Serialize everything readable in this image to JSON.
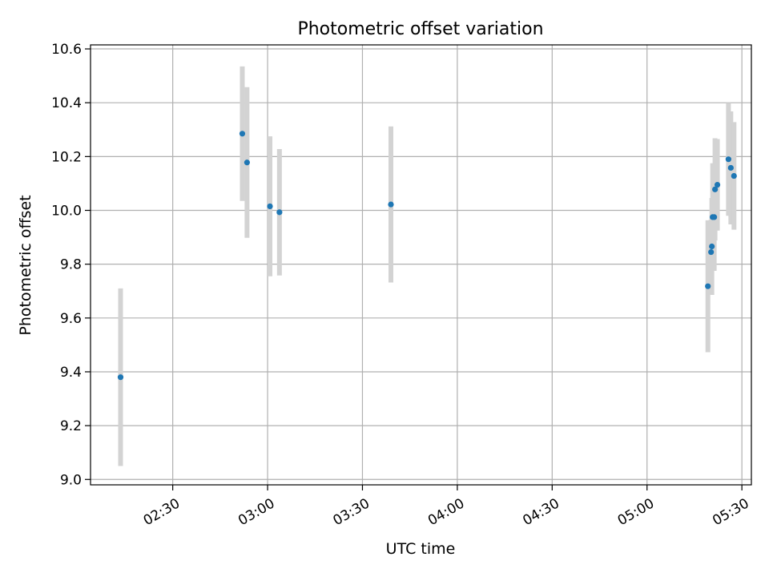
{
  "chart_data": {
    "type": "scatter",
    "title": "Photometric offset variation",
    "xlabel": "UTC time",
    "ylabel": "Photometric offset",
    "x_ticks": [
      "02:30",
      "03:00",
      "03:30",
      "04:00",
      "04:30",
      "05:00",
      "05:30"
    ],
    "y_ticks": [
      "9.0",
      "9.2",
      "9.4",
      "9.6",
      "9.8",
      "10.0",
      "10.2",
      "10.4",
      "10.6"
    ],
    "xlim": [
      "02:04",
      "05:33"
    ],
    "ylim": [
      8.98,
      10.615
    ],
    "grid": true,
    "marker_color": "#1f77b4",
    "errorbar_color": "#d3d3d3",
    "series": [
      {
        "points": [
          {
            "x": "02:13:30",
            "y": 9.38,
            "yerr": 0.33
          },
          {
            "x": "02:52:00",
            "y": 10.285,
            "yerr": 0.25
          },
          {
            "x": "02:53:30",
            "y": 10.178,
            "yerr": 0.28
          },
          {
            "x": "03:00:45",
            "y": 10.015,
            "yerr": 0.26
          },
          {
            "x": "03:03:45",
            "y": 9.993,
            "yerr": 0.235
          },
          {
            "x": "03:39:00",
            "y": 10.022,
            "yerr": 0.29
          },
          {
            "x": "05:19:15",
            "y": 9.718,
            "yerr": 0.245
          },
          {
            "x": "05:20:15",
            "y": 9.845,
            "yerr": 0.12
          },
          {
            "x": "05:20:30",
            "y": 9.866,
            "yerr": 0.18
          },
          {
            "x": "05:20:45",
            "y": 9.975,
            "yerr": 0.2
          },
          {
            "x": "05:21:15",
            "y": 9.975,
            "yerr": 0.2
          },
          {
            "x": "05:21:30",
            "y": 10.078,
            "yerr": 0.19
          },
          {
            "x": "05:22:15",
            "y": 10.095,
            "yerr": 0.17
          },
          {
            "x": "05:25:45",
            "y": 10.19,
            "yerr": 0.21
          },
          {
            "x": "05:26:30",
            "y": 10.158,
            "yerr": 0.21
          },
          {
            "x": "05:27:30",
            "y": 10.128,
            "yerr": 0.2
          }
        ]
      }
    ]
  }
}
